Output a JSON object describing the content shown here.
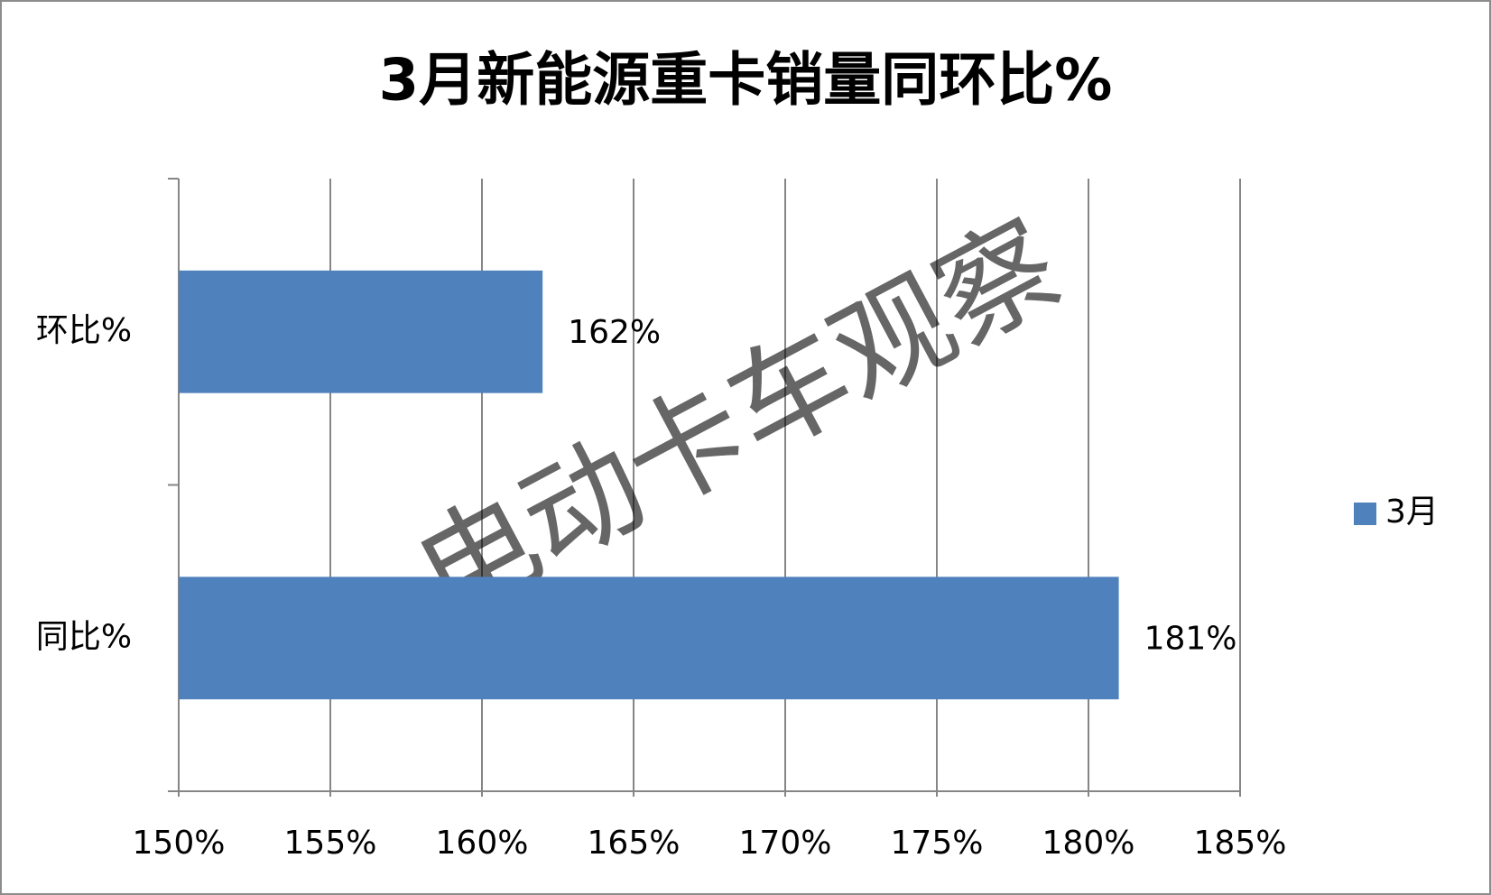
{
  "chart_data": {
    "type": "bar",
    "orientation": "horizontal",
    "title": "3月新能源重卡销量同环比%",
    "categories": [
      "环比%",
      "同比%"
    ],
    "series": [
      {
        "name": "3月",
        "color": "#4f81bd",
        "values": [
          162,
          181
        ],
        "value_labels": [
          "162%",
          "181%"
        ]
      }
    ],
    "xlim": [
      150,
      185
    ],
    "xticks": [
      {
        "value": 150,
        "label": "150%"
      },
      {
        "value": 155,
        "label": "155%"
      },
      {
        "value": 160,
        "label": "160%"
      },
      {
        "value": 165,
        "label": "165%"
      },
      {
        "value": 170,
        "label": "170%"
      },
      {
        "value": 175,
        "label": "175%"
      },
      {
        "value": 180,
        "label": "180%"
      },
      {
        "value": 185,
        "label": "185%"
      }
    ],
    "grid": true,
    "legend": "right",
    "watermark": "电动卡车观察"
  }
}
